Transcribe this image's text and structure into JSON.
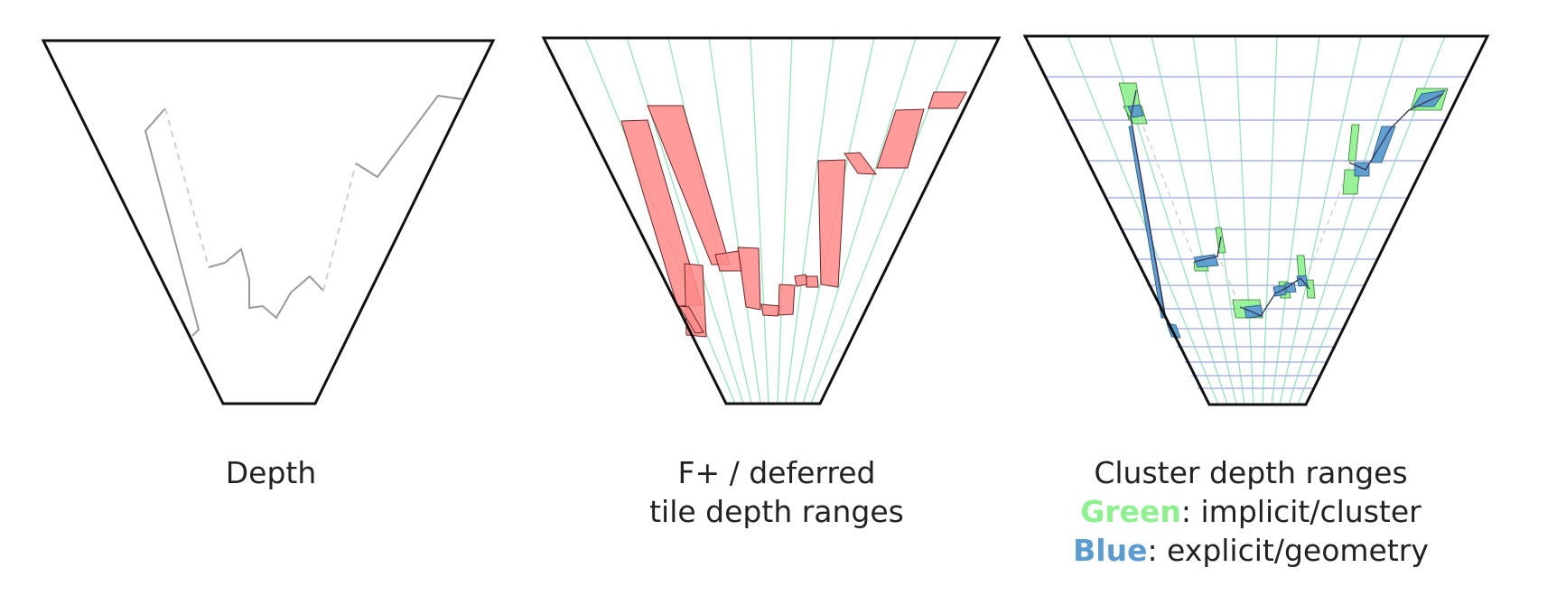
{
  "panels": [
    {
      "id": "depth",
      "caption_lines": [
        "Depth"
      ]
    },
    {
      "id": "tile",
      "caption_lines": [
        "F+ / deferred",
        "tile depth ranges"
      ]
    },
    {
      "id": "cluster",
      "caption_lines": [
        "Cluster depth ranges"
      ],
      "legend": [
        {
          "word": "Green",
          "rest": ": implicit/cluster",
          "color": "#8ef08e"
        },
        {
          "word": "Blue",
          "rest": ": explicit/geometry",
          "color": "#5b9bd0"
        }
      ]
    }
  ],
  "colors": {
    "frustum_stroke": "#111111",
    "depth_curve": "#9a9a9a",
    "depth_gap": "#cfcfcf",
    "tile_line": "#9fe3bf",
    "tile_range_fill": "#ff8a8a",
    "cluster_grid_vertical": "#9fe3bf",
    "cluster_grid_horizontal": "#a9b4e6",
    "implicit_cluster": "#8ef08e",
    "explicit_geometry": "#5b9bd0"
  }
}
